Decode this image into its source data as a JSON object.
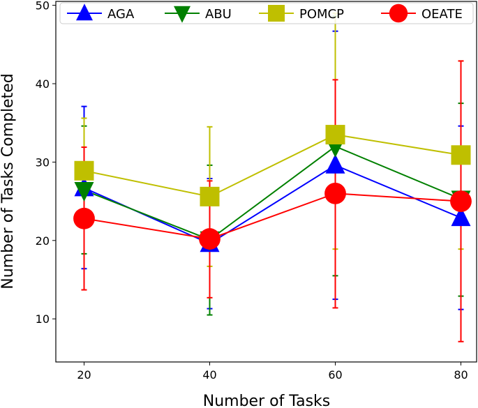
{
  "chart_data": {
    "type": "line",
    "title": "",
    "xlabel": "Number of Tasks",
    "ylabel": "Number of Tasks Completed",
    "x": [
      20,
      40,
      60,
      80
    ],
    "xticks": [
      "20",
      "40",
      "60",
      "80"
    ],
    "yticks": [
      "10",
      "20",
      "30",
      "40",
      "50"
    ],
    "ylim": [
      4.5,
      50.5
    ],
    "xlim": [
      15.5,
      82.5
    ],
    "grid": false,
    "legend_position": "top",
    "series": [
      {
        "name": "AGA",
        "color": "#0000ff",
        "marker": "triangle-up",
        "values": [
          26.7,
          19.6,
          29.6,
          22.9
        ],
        "err_low": [
          16.4,
          11.3,
          12.5,
          11.2
        ],
        "err_high": [
          37.1,
          27.9,
          46.7,
          34.6
        ]
      },
      {
        "name": "ABU",
        "color": "#008000",
        "marker": "triangle-down",
        "values": [
          26.4,
          20.1,
          32.0,
          25.3
        ],
        "err_low": [
          18.3,
          10.5,
          15.5,
          12.9
        ],
        "err_high": [
          34.6,
          29.6,
          48.6,
          37.5
        ]
      },
      {
        "name": "POMCP",
        "color": "#bfbf00",
        "marker": "square",
        "values": [
          28.9,
          25.6,
          33.5,
          30.9
        ],
        "err_low": [
          22.2,
          16.7,
          18.9,
          18.9
        ],
        "err_high": [
          35.6,
          34.5,
          49.0,
          42.9
        ]
      },
      {
        "name": "OEATE",
        "color": "#ff0000",
        "marker": "circle",
        "values": [
          22.8,
          20.2,
          26.0,
          25.0
        ],
        "err_low": [
          13.7,
          12.7,
          11.4,
          7.1
        ],
        "err_high": [
          31.9,
          27.6,
          40.5,
          42.9
        ]
      }
    ]
  }
}
